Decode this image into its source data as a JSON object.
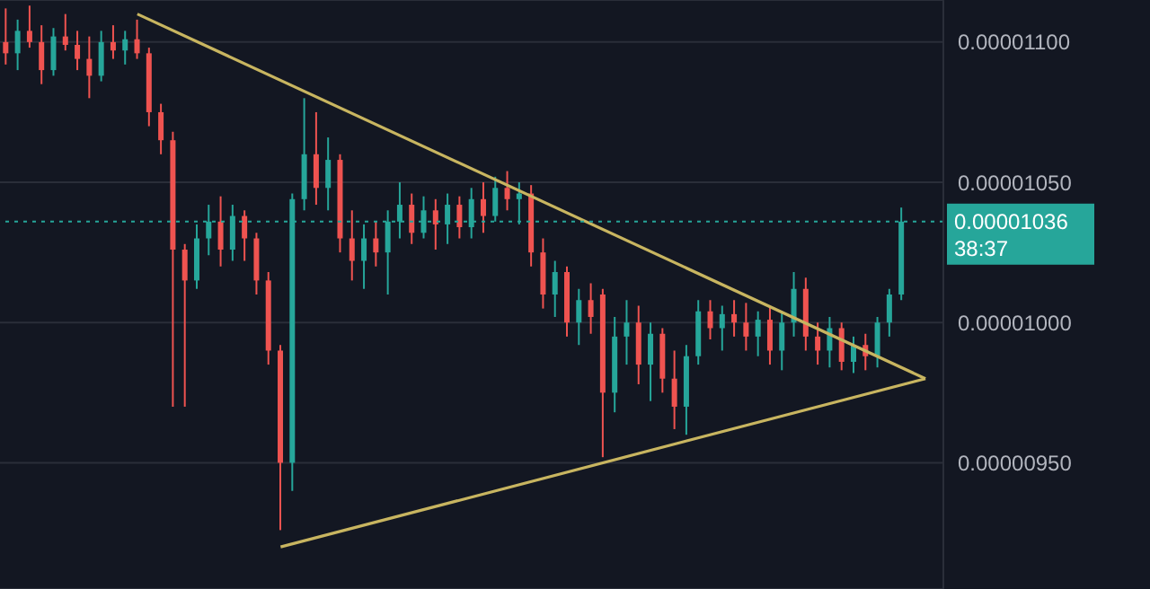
{
  "chart_data": {
    "type": "candlestick",
    "categories": [
      null,
      null,
      null,
      null,
      null,
      null,
      null,
      null,
      null,
      null,
      null,
      null,
      null,
      null,
      null,
      null,
      null,
      null,
      null,
      null,
      null,
      null,
      null,
      null,
      null,
      null,
      null,
      null,
      null,
      null,
      null,
      null,
      null,
      null,
      null,
      null,
      null,
      null,
      null,
      null,
      null,
      null,
      null,
      null,
      null,
      null,
      null,
      null,
      null,
      null,
      null,
      null,
      null,
      null,
      null,
      null,
      null,
      null,
      null,
      null,
      null,
      null,
      null,
      null,
      null,
      null,
      null,
      null,
      null,
      null,
      null,
      null,
      null,
      null,
      null,
      null,
      null,
      null,
      null
    ],
    "ohlc": [
      [
        1.1e-05,
        1.112e-05,
        1.092e-05,
        1.096e-05
      ],
      [
        1.096e-05,
        1.108e-05,
        1.09e-05,
        1.104e-05
      ],
      [
        1.104e-05,
        1.113e-05,
        1.098e-05,
        1.1e-05
      ],
      [
        1.1e-05,
        1.106e-05,
        1.085e-05,
        1.09e-05
      ],
      [
        1.09e-05,
        1.105e-05,
        1.088e-05,
        1.102e-05
      ],
      [
        1.102e-05,
        1.11e-05,
        1.097e-05,
        1.099e-05
      ],
      [
        1.099e-05,
        1.104e-05,
        1.09e-05,
        1.094e-05
      ],
      [
        1.094e-05,
        1.102e-05,
        1.08e-05,
        1.088e-05
      ],
      [
        1.088e-05,
        1.104e-05,
        1.086e-05,
        1.1e-05
      ],
      [
        1.1e-05,
        1.106e-05,
        1.094e-05,
        1.097e-05
      ],
      [
        1.097e-05,
        1.104e-05,
        1.092e-05,
        1.101e-05
      ],
      [
        1.101e-05,
        1.108e-05,
        1.094e-05,
        1.096e-05
      ],
      [
        1.096e-05,
        1.098e-05,
        1.07e-05,
        1.075e-05
      ],
      [
        1.075e-05,
        1.078e-05,
        1.06e-05,
        1.065e-05
      ],
      [
        1.065e-05,
        1.068e-05,
        9.7e-06,
        1.026e-05
      ],
      [
        1.026e-05,
        1.028e-05,
        9.7e-06,
        1.015e-05
      ],
      [
        1.015e-05,
        1.035e-05,
        1.012e-05,
        1.03e-05
      ],
      [
        1.03e-05,
        1.042e-05,
        1.024e-05,
        1.036e-05
      ],
      [
        1.036e-05,
        1.045e-05,
        1.02e-05,
        1.026e-05
      ],
      [
        1.026e-05,
        1.042e-05,
        1.022e-05,
        1.038e-05
      ],
      [
        1.038e-05,
        1.04e-05,
        1.022e-05,
        1.03e-05
      ],
      [
        1.03e-05,
        1.032e-05,
        1.01e-05,
        1.015e-05
      ],
      [
        1.015e-05,
        1.018e-05,
        9.85e-06,
        9.9e-06
      ],
      [
        9.9e-06,
        9.92e-06,
        9.26e-06,
        9.5e-06
      ],
      [
        9.5e-06,
        1.046e-05,
        9.4e-06,
        1.044e-05
      ],
      [
        1.044e-05,
        1.08e-05,
        1.04e-05,
        1.06e-05
      ],
      [
        1.06e-05,
        1.075e-05,
        1.042e-05,
        1.048e-05
      ],
      [
        1.048e-05,
        1.066e-05,
        1.04e-05,
        1.058e-05
      ],
      [
        1.058e-05,
        1.06e-05,
        1.025e-05,
        1.03e-05
      ],
      [
        1.03e-05,
        1.04e-05,
        1.015e-05,
        1.022e-05
      ],
      [
        1.022e-05,
        1.035e-05,
        1.012e-05,
        1.03e-05
      ],
      [
        1.03e-05,
        1.036e-05,
        1.02e-05,
        1.025e-05
      ],
      [
        1.025e-05,
        1.04e-05,
        1.01e-05,
        1.036e-05
      ],
      [
        1.036e-05,
        1.05e-05,
        1.03e-05,
        1.042e-05
      ],
      [
        1.042e-05,
        1.046e-05,
        1.028e-05,
        1.032e-05
      ],
      [
        1.032e-05,
        1.045e-05,
        1.03e-05,
        1.04e-05
      ],
      [
        1.04e-05,
        1.044e-05,
        1.026e-05,
        1.035e-05
      ],
      [
        1.035e-05,
        1.046e-05,
        1.028e-05,
        1.042e-05
      ],
      [
        1.042e-05,
        1.045e-05,
        1.03e-05,
        1.034e-05
      ],
      [
        1.034e-05,
        1.048e-05,
        1.03e-05,
        1.044e-05
      ],
      [
        1.044e-05,
        1.05e-05,
        1.032e-05,
        1.038e-05
      ],
      [
        1.038e-05,
        1.052e-05,
        1.036e-05,
        1.048e-05
      ],
      [
        1.048e-05,
        1.054e-05,
        1.04e-05,
        1.044e-05
      ],
      [
        1.044e-05,
        1.05e-05,
        1.035e-05,
        1.046e-05
      ],
      [
        1.046e-05,
        1.049e-05,
        1.02e-05,
        1.025e-05
      ],
      [
        1.025e-05,
        1.03e-05,
        1.005e-05,
        1.01e-05
      ],
      [
        1.01e-05,
        1.022e-05,
        1.002e-05,
        1.018e-05
      ],
      [
        1.018e-05,
        1.02e-05,
        9.95e-06,
        1e-05
      ],
      [
        1e-05,
        1.012e-05,
        9.92e-06,
        1.008e-05
      ],
      [
        1.008e-05,
        1.014e-05,
        9.96e-06,
        1.002e-05
      ],
      [
        1.01e-05,
        1.012e-05,
        9.52e-06,
        9.75e-06
      ],
      [
        9.75e-06,
        1.002e-05,
        9.68e-06,
        9.95e-06
      ],
      [
        9.95e-06,
        1.008e-05,
        9.85e-06,
        1e-05
      ],
      [
        1e-05,
        1.006e-05,
        9.78e-06,
        9.85e-06
      ],
      [
        9.85e-06,
        1e-05,
        9.72e-06,
        9.96e-06
      ],
      [
        9.96e-06,
        9.98e-06,
        9.75e-06,
        9.8e-06
      ],
      [
        9.8e-06,
        9.9e-06,
        9.62e-06,
        9.7e-06
      ],
      [
        9.7e-06,
        9.92e-06,
        9.6e-06,
        9.88e-06
      ],
      [
        9.88e-06,
        1.008e-05,
        9.85e-06,
        1.004e-05
      ],
      [
        1.004e-05,
        1.008e-05,
        9.94e-06,
        9.98e-06
      ],
      [
        9.98e-06,
        1.006e-05,
        9.9e-06,
        1.003e-05
      ],
      [
        1.003e-05,
        1.008e-05,
        9.95e-06,
        1e-05
      ],
      [
        1e-05,
        1.007e-05,
        9.9e-06,
        9.95e-06
      ],
      [
        9.95e-06,
        1.004e-05,
        9.88e-06,
        1.001e-05
      ],
      [
        1.001e-05,
        1.006e-05,
        9.85e-06,
        9.9e-06
      ],
      [
        9.9e-06,
        1.004e-05,
        9.83e-06,
        1e-05
      ],
      [
        1e-05,
        1.018e-05,
        9.95e-06,
        1.012e-05
      ],
      [
        1.012e-05,
        1.016e-05,
        9.9e-06,
        9.95e-06
      ],
      [
        9.95e-06,
        1e-05,
        9.85e-06,
        9.9e-06
      ],
      [
        9.9e-06,
        1.002e-05,
        9.84e-06,
        9.98e-06
      ],
      [
        9.98e-06,
        1e-05,
        9.83e-06,
        9.86e-06
      ],
      [
        9.86e-06,
        9.95e-06,
        9.82e-06,
        9.92e-06
      ],
      [
        9.92e-06,
        9.96e-06,
        9.83e-06,
        9.88e-06
      ],
      [
        9.88e-06,
        1.002e-05,
        9.84e-06,
        1e-05
      ],
      [
        1e-05,
        1.012e-05,
        9.95e-06,
        1.01e-05
      ],
      [
        1.01e-05,
        1.041e-05,
        1.008e-05,
        1.036e-05
      ],
      null,
      null,
      null
    ],
    "colors": [
      "#ef5350",
      "#26a69a",
      "#ef5350",
      "#ef5350",
      "#26a69a",
      "#ef5350",
      "#ef5350",
      "#ef5350",
      "#26a69a",
      "#ef5350",
      "#26a69a",
      "#ef5350",
      "#ef5350",
      "#ef5350",
      "#ef5350",
      "#ef5350",
      "#26a69a",
      "#26a69a",
      "#ef5350",
      "#26a69a",
      "#ef5350",
      "#ef5350",
      "#ef5350",
      "#ef5350",
      "#26a69a",
      "#26a69a",
      "#ef5350",
      "#26a69a",
      "#ef5350",
      "#ef5350",
      "#26a69a",
      "#ef5350",
      "#26a69a",
      "#26a69a",
      "#ef5350",
      "#26a69a",
      "#ef5350",
      "#26a69a",
      "#ef5350",
      "#26a69a",
      "#ef5350",
      "#26a69a",
      "#ef5350",
      "#26a69a",
      "#ef5350",
      "#ef5350",
      "#26a69a",
      "#ef5350",
      "#26a69a",
      "#ef5350",
      "#ef5350",
      "#26a69a",
      "#26a69a",
      "#ef5350",
      "#26a69a",
      "#ef5350",
      "#ef5350",
      "#26a69a",
      "#26a69a",
      "#ef5350",
      "#26a69a",
      "#ef5350",
      "#ef5350",
      "#26a69a",
      "#ef5350",
      "#26a69a",
      "#26a69a",
      "#ef5350",
      "#ef5350",
      "#26a69a",
      "#ef5350",
      "#26a69a",
      "#ef5350",
      "#26a69a",
      "#26a69a",
      "#26a69a",
      null,
      null,
      null
    ],
    "series": [
      {
        "type": "line",
        "color": "#c8b560",
        "values": [
          null,
          null,
          null,
          null,
          null,
          null,
          null,
          null,
          null,
          null,
          null,
          1.11e-05,
          null,
          null,
          null,
          null,
          null,
          null,
          null,
          null,
          null,
          null,
          null,
          null,
          null,
          null,
          null,
          null,
          null,
          null,
          null,
          null,
          null,
          null,
          null,
          null,
          null,
          null,
          null,
          null,
          null,
          null,
          null,
          null,
          null,
          null,
          null,
          null,
          null,
          null,
          null,
          null,
          null,
          null,
          null,
          null,
          null,
          null,
          null,
          null,
          null,
          null,
          null,
          null,
          null,
          null,
          null,
          null,
          null,
          null,
          null,
          null,
          null,
          null,
          null,
          null,
          null,
          9.8e-06,
          null
        ]
      },
      {
        "type": "line",
        "color": "#c8b560",
        "values": [
          null,
          null,
          null,
          null,
          null,
          null,
          null,
          null,
          null,
          null,
          null,
          null,
          null,
          null,
          null,
          null,
          null,
          null,
          null,
          null,
          null,
          null,
          null,
          9.2e-06,
          null,
          null,
          null,
          null,
          null,
          null,
          null,
          null,
          null,
          null,
          null,
          null,
          null,
          null,
          null,
          null,
          null,
          null,
          null,
          null,
          null,
          null,
          null,
          null,
          null,
          null,
          null,
          null,
          null,
          null,
          null,
          null,
          null,
          null,
          null,
          null,
          null,
          null,
          null,
          null,
          null,
          null,
          null,
          null,
          null,
          null,
          null,
          null,
          null,
          null,
          null,
          null,
          null,
          9.8e-06,
          null
        ]
      }
    ],
    "ylim": [
      9.05e-06,
      1.115e-05
    ],
    "yticks": [
      {
        "value": 9.5e-06,
        "label": "0.00000950"
      },
      {
        "value": 1e-05,
        "label": "0.00001000"
      },
      {
        "value": 1.05e-05,
        "label": "0.00001050"
      },
      {
        "value": 1.1e-05,
        "label": "0.00001100"
      }
    ],
    "ref_lines": [
      {
        "axis": "y",
        "value": 1.036e-05,
        "label": "0.00001036",
        "color": "#26a69a",
        "line_style": "dotted"
      }
    ],
    "annotations": [
      "38:37"
    ],
    "grid": "y",
    "tick_labels": "y"
  }
}
